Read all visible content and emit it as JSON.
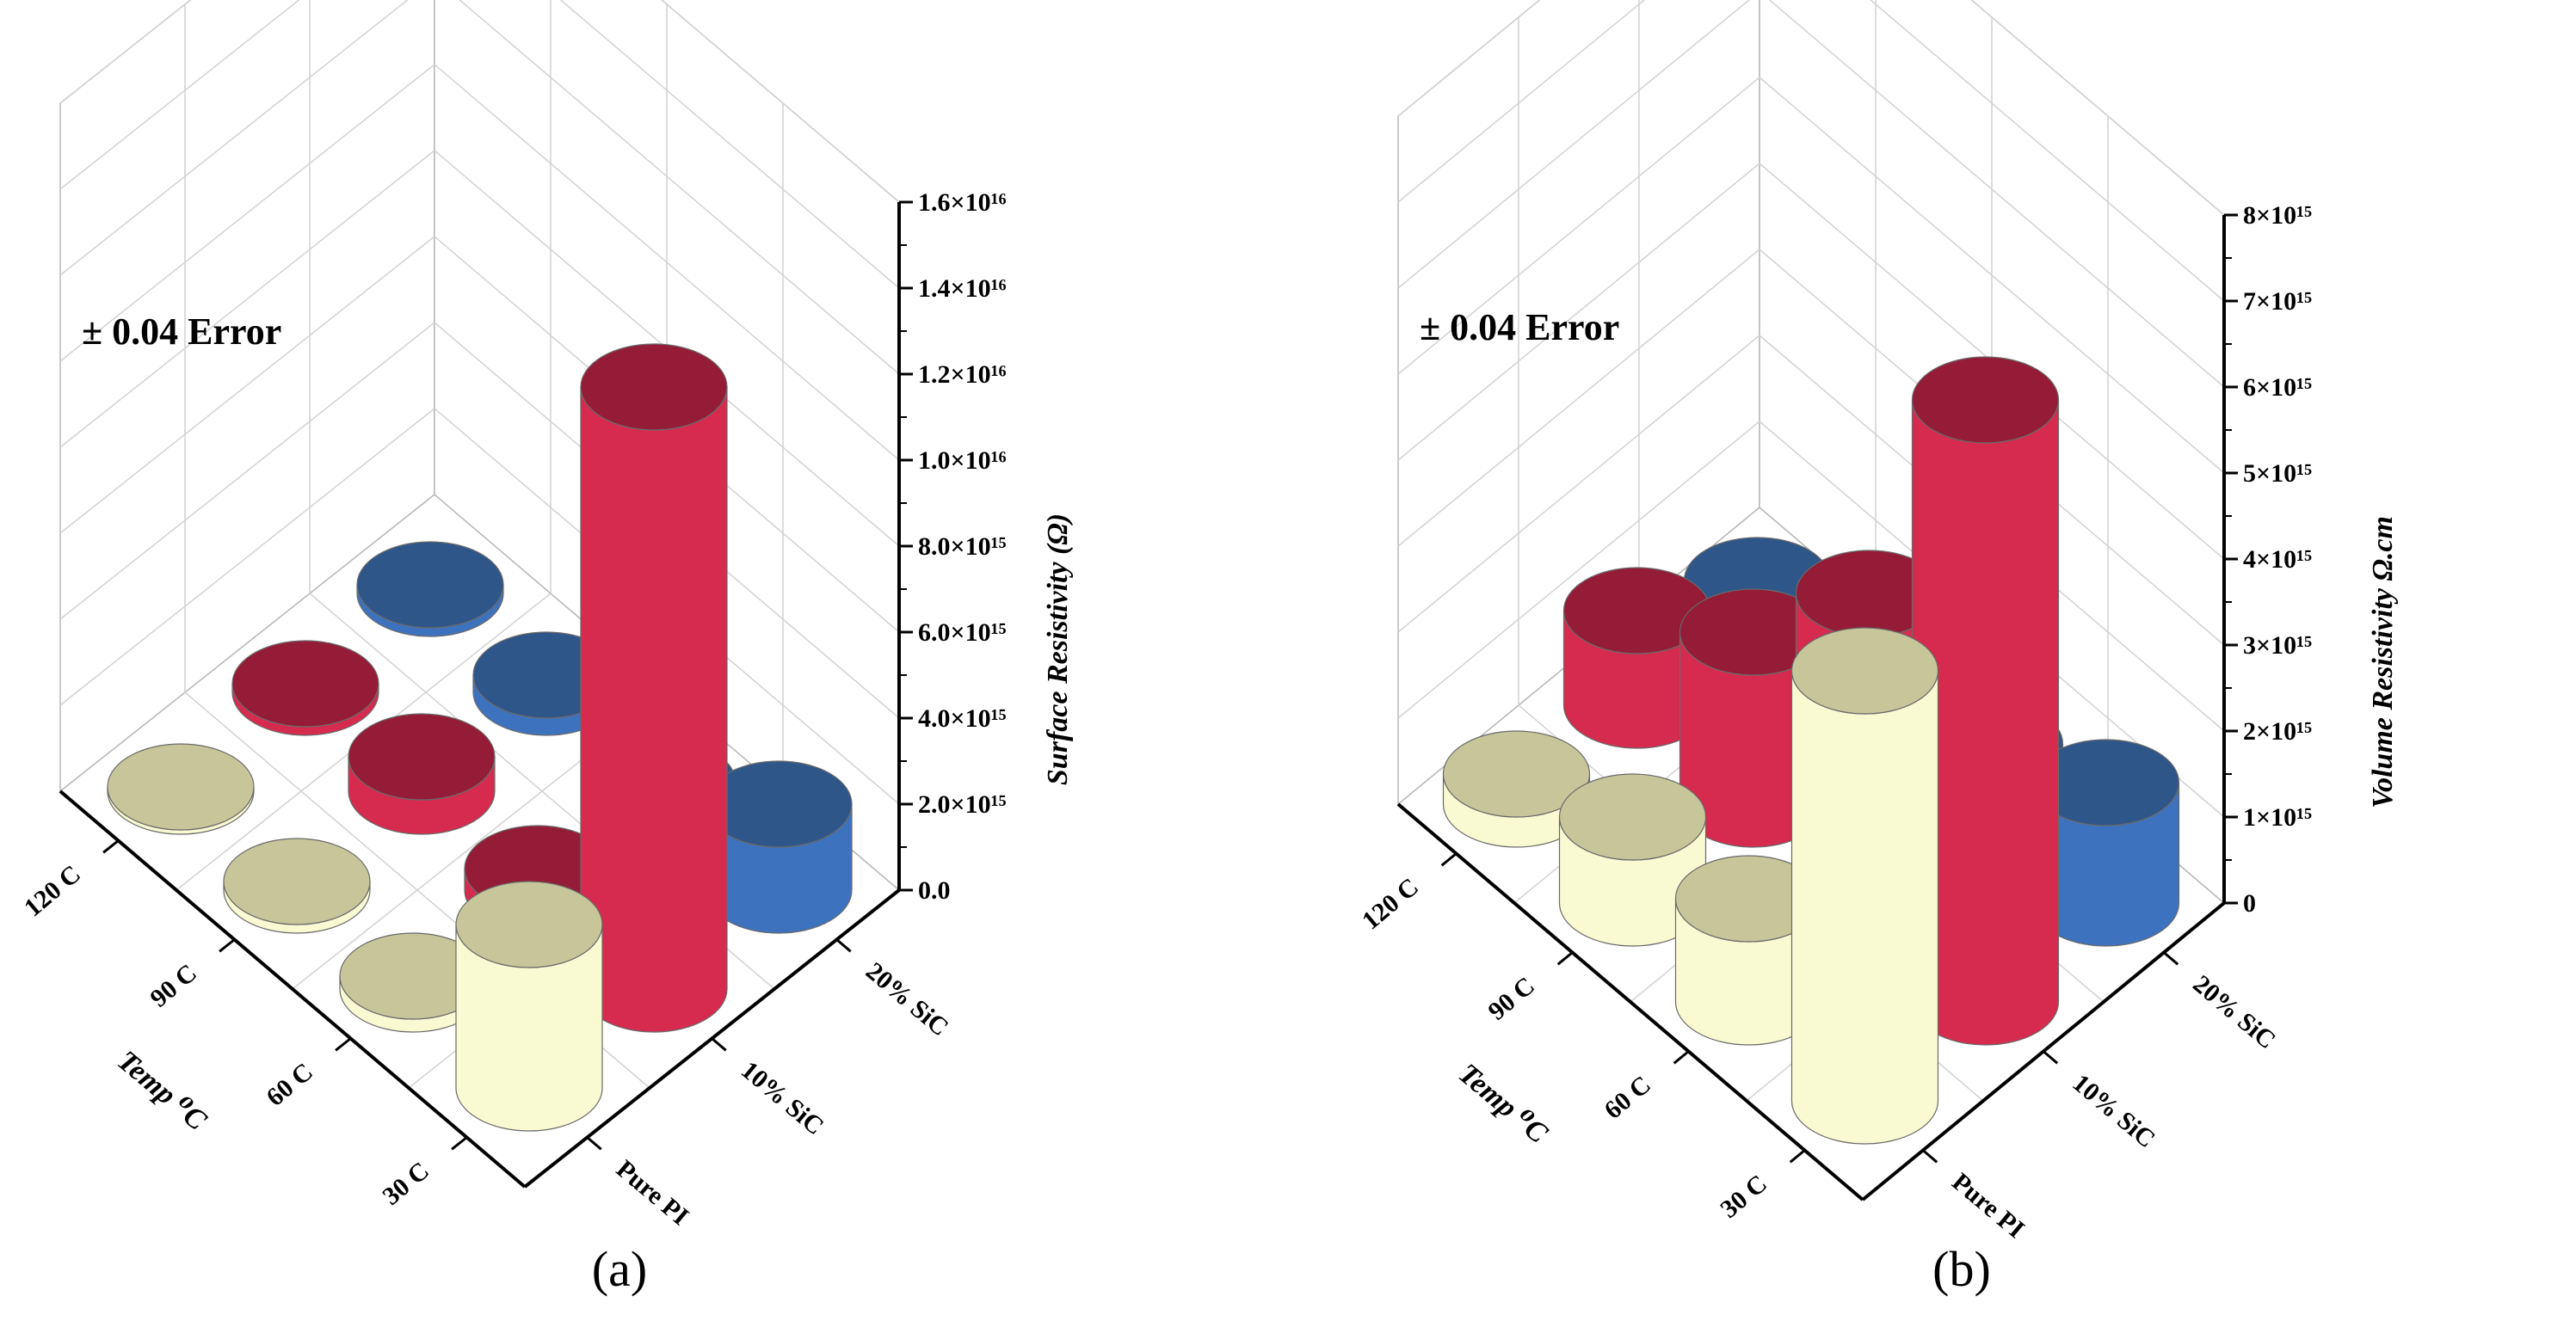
{
  "colors": {
    "pure_pi": "#f9fad2",
    "pure_pi_top": "#c6c69a",
    "sic10": "#d62a4e",
    "sic10_top": "#941c36",
    "sic20": "#3d72be",
    "sic20_top": "#2f5689"
  },
  "chart_data": [
    {
      "type": "bar",
      "subtype": "3d-cylinder",
      "panel_label": "(a)",
      "annotation": "± 0.04 Error",
      "x_axis_label": "Temp ⁰C",
      "x_categories": [
        "30 C",
        "60 C",
        "90 C",
        "120 C"
      ],
      "y_categories": [
        "Pure PI",
        "10% SiC",
        "20% SiC"
      ],
      "zlabel": "Surface Resistivity (Ω)",
      "zlim": [
        0,
        1.6e+16
      ],
      "z_ticks": [
        "0.0",
        "2.0×10¹⁵",
        "4.0×10¹⁵",
        "6.0×10¹⁵",
        "8.0×10¹⁵",
        "1.0×10¹⁶",
        "1.2×10¹⁶",
        "1.4×10¹⁶",
        "1.6×10¹⁶"
      ],
      "series": [
        {
          "name": "Pure PI",
          "values": [
            3800000000000000.0,
            300000000000000.0,
            200000000000000.0,
            100000000000000.0
          ]
        },
        {
          "name": "10% SiC",
          "values": [
            1.4e+16,
            500000000000000.0,
            800000000000000.0,
            200000000000000.0
          ]
        },
        {
          "name": "20% SiC",
          "values": [
            2000000000000000.0,
            200000000000000.0,
            400000000000000.0,
            200000000000000.0
          ]
        }
      ]
    },
    {
      "type": "bar",
      "subtype": "3d-cylinder",
      "panel_label": "(b)",
      "annotation": "± 0.04 Error",
      "x_axis_label": "Temp ⁰C",
      "x_categories": [
        "30 C",
        "60 C",
        "90 C",
        "120 C"
      ],
      "y_categories": [
        "Pure PI",
        "10% SiC",
        "20% SiC"
      ],
      "zlabel": "Volume Resistivity Ω.cm",
      "zlim": [
        0,
        8000000000000000.0
      ],
      "z_ticks": [
        "0",
        "1×10¹⁵",
        "2×10¹⁵",
        "3×10¹⁵",
        "4×10¹⁵",
        "5×10¹⁵",
        "6×10¹⁵",
        "7×10¹⁵",
        "8×10¹⁵"
      ],
      "series": [
        {
          "name": "Pure PI",
          "values": [
            5000000000000000.0,
            1200000000000000.0,
            1000000000000000.0,
            350000000000000.0
          ]
        },
        {
          "name": "10% SiC",
          "values": [
            7000000000000000.0,
            3600000000000000.0,
            2000000000000000.0,
            1100000000000000.0
          ]
        },
        {
          "name": "20% SiC",
          "values": [
            1400000000000000.0,
            700000000000000.0,
            500000000000000.0,
            300000000000000.0
          ]
        }
      ]
    }
  ]
}
